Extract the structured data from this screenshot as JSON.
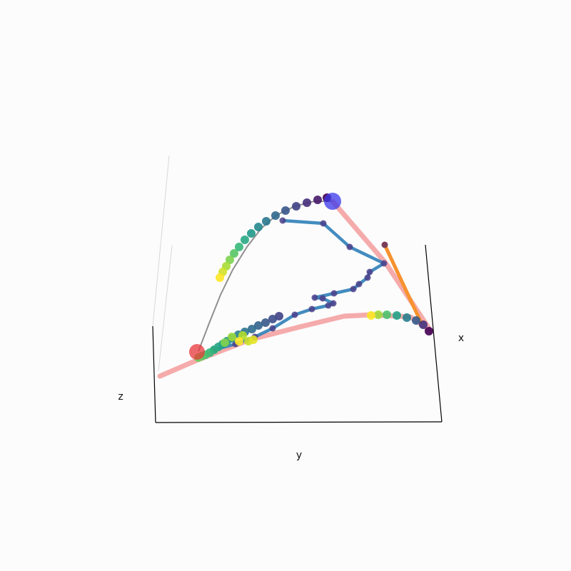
{
  "chart_data": {
    "type": "scatter",
    "projection": "3d",
    "title": "",
    "xlabel": "x",
    "ylabel": "y",
    "zlabel": "z",
    "grid": false,
    "colormap": "viridis",
    "colors": {
      "background": "#fcfcfc",
      "axis": "#000000",
      "pane_edge": "#d8d8d8",
      "pink_path": "#f4a6a6",
      "blue_path": "#2f7fb8",
      "blue_path_marker": "#4b3f8a",
      "orange_path": "#f7922e",
      "orange_end": "#7a3e5a",
      "gray_curve": "#909090",
      "start_marker": "#e8373b",
      "end_marker": "#3a37ea"
    },
    "series": [
      {
        "kind": "line",
        "role": "pink-path",
        "points": [
          [
            224,
            527
          ],
          [
            275,
            505
          ],
          [
            350,
            476
          ],
          [
            420,
            458
          ],
          [
            482,
            443
          ],
          [
            520,
            441
          ],
          [
            575,
            444
          ],
          [
            603,
            463
          ],
          [
            540,
            368
          ],
          [
            466,
            282
          ]
        ]
      },
      {
        "kind": "line",
        "role": "orange-segment",
        "points": [
          [
            539,
            343
          ],
          [
            590,
            452
          ]
        ]
      },
      {
        "kind": "line",
        "role": "gray-curve",
        "points": [
          [
            278,
            492
          ],
          [
            293,
            453
          ],
          [
            309,
            413
          ],
          [
            326,
            378
          ],
          [
            346,
            346
          ],
          [
            366,
            320
          ],
          [
            388,
            301
          ],
          [
            413,
            289
          ],
          [
            440,
            282
          ],
          [
            466,
            282
          ]
        ]
      },
      {
        "kind": "line-markers",
        "role": "blue-path",
        "points": [
          [
            300,
            490
          ],
          [
            330,
            482
          ],
          [
            357,
            472
          ],
          [
            382,
            460
          ],
          [
            413,
            441
          ],
          [
            437,
            433
          ],
          [
            460,
            428
          ],
          [
            467,
            425
          ],
          [
            452,
            418
          ],
          [
            441,
            417
          ],
          [
            468,
            411
          ],
          [
            495,
            405
          ],
          [
            503,
            398
          ],
          [
            515,
            389
          ],
          [
            518,
            381
          ],
          [
            538,
            369
          ],
          [
            490,
            346
          ],
          [
            453,
            313
          ],
          [
            396,
            309
          ]
        ]
      },
      {
        "kind": "scatter-gradient",
        "role": "arc-top",
        "points": [
          [
            458,
            277
          ],
          [
            445,
            280
          ],
          [
            430,
            284
          ],
          [
            415,
            289
          ],
          [
            400,
            295
          ],
          [
            386,
            302
          ],
          [
            373,
            310
          ],
          [
            362,
            318
          ],
          [
            352,
            327
          ],
          [
            343,
            336
          ],
          [
            335,
            346
          ],
          [
            328,
            355
          ],
          [
            322,
            364
          ],
          [
            317,
            373
          ],
          [
            312,
            381
          ],
          [
            308,
            389
          ]
        ]
      },
      {
        "kind": "scatter-gradient",
        "role": "arc-right",
        "points": [
          [
            601,
            464
          ],
          [
            593,
            455
          ],
          [
            583,
            449
          ],
          [
            570,
            445
          ],
          [
            556,
            442
          ],
          [
            542,
            441
          ],
          [
            530,
            441
          ],
          [
            520,
            442
          ]
        ]
      },
      {
        "kind": "scatter-gradient",
        "role": "cluster-low",
        "points": [
          [
            391,
            443
          ],
          [
            382,
            447
          ],
          [
            372,
            452
          ],
          [
            362,
            456
          ],
          [
            353,
            461
          ],
          [
            343,
            465
          ],
          [
            334,
            469
          ],
          [
            325,
            474
          ],
          [
            318,
            478
          ],
          [
            312,
            482
          ],
          [
            306,
            486
          ],
          [
            300,
            490
          ],
          [
            294,
            494
          ],
          [
            288,
            497
          ],
          [
            283,
            499
          ],
          [
            278,
            501
          ],
          [
            315,
            480
          ],
          [
            325,
            472
          ],
          [
            340,
            470
          ],
          [
            348,
            478
          ],
          [
            355,
            476
          ],
          [
            335,
            478
          ]
        ]
      },
      {
        "kind": "marker",
        "role": "start-point",
        "point": [
          276,
          493
        ]
      },
      {
        "kind": "marker",
        "role": "end-point",
        "point": [
          466,
          282
        ]
      }
    ],
    "axes": {
      "z_axis": [
        [
          214,
          457
        ],
        [
          218,
          592
        ]
      ],
      "y_axis": [
        [
          218,
          592
        ],
        [
          619,
          591
        ]
      ],
      "x_axis": [
        [
          596,
          343
        ],
        [
          619,
          591
        ]
      ],
      "pane_edge_left": [
        [
          214,
          457
        ],
        [
          237,
          218
        ]
      ],
      "pane_edge_mid": [
        [
          222,
          520
        ],
        [
          241,
          344
        ]
      ]
    }
  }
}
